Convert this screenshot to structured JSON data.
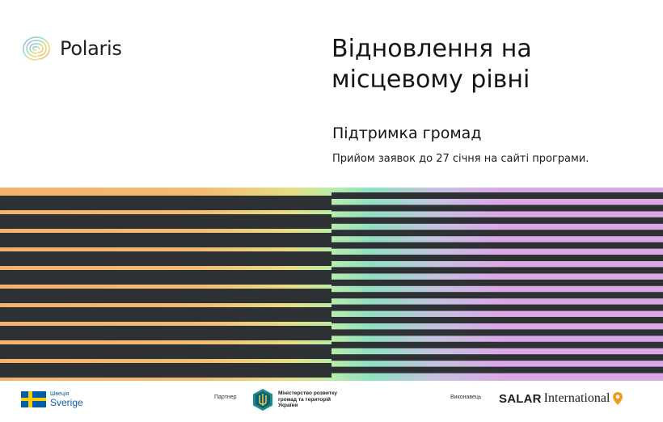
{
  "brand": {
    "name": "Polaris",
    "icon": "polaris-rainbow-spiral-icon"
  },
  "headline": {
    "line1": "Відновлення на",
    "line2": "місцевому рівні"
  },
  "subheading": "Підтримка громад",
  "note": "Прийом заявок до 27 січня на сайті програми.",
  "colors": {
    "dark_stripe": "#2e3134",
    "orange": "#f5b26b",
    "mint": "#8fe0c3",
    "lilac": "#dba8e6",
    "background": "#ffffff"
  },
  "footer": {
    "sweden": {
      "small": "Швеція",
      "big": "Sverige",
      "icon": "sweden-flag-icon"
    },
    "partner_label": "Партнер",
    "ministry_lines": [
      "Міністерство розвитку",
      "громад та територій",
      "України"
    ],
    "ministry_icon": "ukraine-trident-hexagon-icon",
    "executor_label": "Виконавець",
    "salar": {
      "bold": "SALAR",
      "serif": "International",
      "icon": "location-pin-icon"
    }
  }
}
